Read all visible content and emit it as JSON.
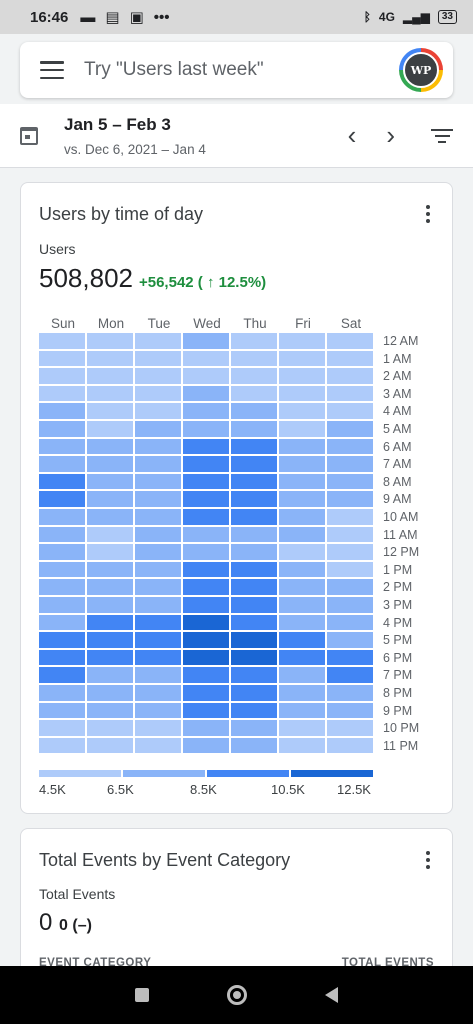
{
  "status_bar": {
    "time": "16:46",
    "dots": "•••",
    "network": "4G",
    "battery": "33"
  },
  "search": {
    "placeholder": "Try \"Users last week\"",
    "avatar_text": "WP"
  },
  "date_range": {
    "primary": "Jan 5 – Feb 3",
    "comparison": "vs. Dec 6, 2021 – Jan 4",
    "prev_glyph": "‹",
    "next_glyph": "›"
  },
  "users_card": {
    "title": "Users by time of day",
    "metric_label": "Users",
    "metric_value": "508,802",
    "delta": "+56,542 ( ↑ 12.5%)",
    "days": [
      "Sun",
      "Mon",
      "Tue",
      "Wed",
      "Thu",
      "Fri",
      "Sat"
    ],
    "hours": [
      "12 AM",
      "1 AM",
      "2 AM",
      "3 AM",
      "4 AM",
      "5 AM",
      "6 AM",
      "7 AM",
      "8 AM",
      "9 AM",
      "10 AM",
      "11 AM",
      "12 PM",
      "1 PM",
      "2 PM",
      "3 PM",
      "4 PM",
      "5 PM",
      "6 PM",
      "7 PM",
      "8 PM",
      "9 PM",
      "10 PM",
      "11 PM"
    ],
    "heat_levels": [
      [
        1,
        1,
        1,
        2,
        1,
        1,
        1
      ],
      [
        1,
        1,
        1,
        1,
        1,
        1,
        1
      ],
      [
        1,
        1,
        1,
        1,
        1,
        1,
        1
      ],
      [
        1,
        1,
        1,
        2,
        1,
        1,
        1
      ],
      [
        2,
        1,
        1,
        2,
        2,
        1,
        1
      ],
      [
        2,
        1,
        2,
        2,
        2,
        1,
        2
      ],
      [
        2,
        2,
        2,
        3,
        3,
        2,
        2
      ],
      [
        2,
        2,
        2,
        3,
        3,
        2,
        2
      ],
      [
        3,
        2,
        2,
        3,
        3,
        2,
        2
      ],
      [
        3,
        2,
        2,
        3,
        3,
        2,
        2
      ],
      [
        2,
        2,
        2,
        3,
        3,
        2,
        1
      ],
      [
        2,
        1,
        2,
        2,
        2,
        2,
        1
      ],
      [
        2,
        1,
        2,
        2,
        2,
        1,
        1
      ],
      [
        2,
        2,
        2,
        3,
        3,
        2,
        1
      ],
      [
        2,
        2,
        2,
        3,
        3,
        2,
        2
      ],
      [
        2,
        2,
        2,
        3,
        3,
        2,
        2
      ],
      [
        2,
        3,
        3,
        4,
        3,
        2,
        2
      ],
      [
        3,
        3,
        3,
        4,
        4,
        3,
        2
      ],
      [
        3,
        3,
        3,
        4,
        4,
        3,
        3
      ],
      [
        3,
        2,
        2,
        3,
        3,
        2,
        3
      ],
      [
        2,
        2,
        2,
        3,
        3,
        2,
        2
      ],
      [
        2,
        2,
        2,
        3,
        3,
        2,
        2
      ],
      [
        1,
        1,
        1,
        2,
        2,
        1,
        1
      ],
      [
        1,
        1,
        1,
        2,
        2,
        1,
        1
      ]
    ],
    "legend_labels": [
      "4.5K",
      "6.5K",
      "8.5K",
      "10.5K",
      "12.5K"
    ],
    "colors": [
      "#d2e3fc",
      "#aecbfa",
      "#8ab4f8",
      "#4285f4",
      "#1a66d4"
    ]
  },
  "events_card": {
    "title": "Total Events by Event Category",
    "metric_label": "Total Events",
    "metric_value": "0",
    "metric_sub": "0 (–)",
    "col_left": "EVENT CATEGORY",
    "col_right": "TOTAL EVENTS"
  }
}
